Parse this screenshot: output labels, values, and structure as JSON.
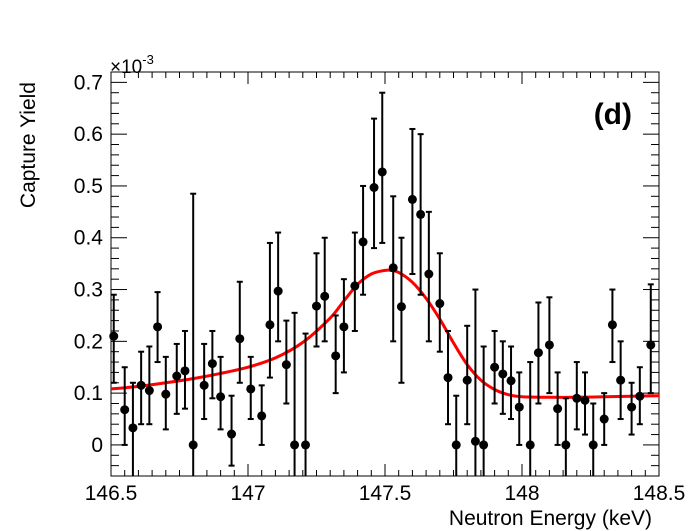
{
  "chart_data": {
    "type": "scatter",
    "title": "",
    "panel_label": "(d)",
    "xlabel": "Neutron Energy (keV)",
    "ylabel": "Capture Yield",
    "y_exponent": "×10",
    "y_exponent_power": "-3",
    "xlim": [
      146.5,
      148.5
    ],
    "ylim": [
      -0.06,
      0.72
    ],
    "x_ticks": [
      146.5,
      147,
      147.5,
      148,
      148.5
    ],
    "x_tick_labels": [
      "146.5",
      "147",
      "147.5",
      "148",
      "148.5"
    ],
    "y_ticks": [
      0,
      0.1,
      0.2,
      0.3,
      0.4,
      0.5,
      0.6,
      0.7
    ],
    "y_tick_labels": [
      "0",
      "0.1",
      "0.2",
      "0.3",
      "0.4",
      "0.5",
      "0.6",
      "0.7"
    ],
    "series": [
      {
        "name": "data",
        "color": "#000000",
        "points": [
          {
            "x": 146.51,
            "y": 0.21,
            "lo": 0.12,
            "hi": 0.29
          },
          {
            "x": 146.55,
            "y": 0.068,
            "lo": 0.0,
            "hi": 0.15
          },
          {
            "x": 146.58,
            "y": 0.033,
            "lo": -0.06,
            "hi": 0.12
          },
          {
            "x": 146.61,
            "y": 0.115,
            "lo": 0.04,
            "hi": 0.18
          },
          {
            "x": 146.64,
            "y": 0.105,
            "lo": 0.04,
            "hi": 0.19
          },
          {
            "x": 146.67,
            "y": 0.228,
            "lo": 0.16,
            "hi": 0.295
          },
          {
            "x": 146.7,
            "y": 0.098,
            "lo": 0.03,
            "hi": 0.17
          },
          {
            "x": 146.74,
            "y": 0.133,
            "lo": 0.06,
            "hi": 0.195
          },
          {
            "x": 146.77,
            "y": 0.143,
            "lo": 0.07,
            "hi": 0.22
          },
          {
            "x": 146.8,
            "y": 0.0,
            "lo": -0.06,
            "hi": 0.485
          },
          {
            "x": 146.84,
            "y": 0.115,
            "lo": 0.05,
            "hi": 0.195
          },
          {
            "x": 146.87,
            "y": 0.157,
            "lo": 0.09,
            "hi": 0.22
          },
          {
            "x": 146.9,
            "y": 0.093,
            "lo": 0.03,
            "hi": 0.17
          },
          {
            "x": 146.94,
            "y": 0.021,
            "lo": -0.04,
            "hi": 0.095
          },
          {
            "x": 146.97,
            "y": 0.205,
            "lo": 0.12,
            "hi": 0.315
          },
          {
            "x": 147.01,
            "y": 0.108,
            "lo": 0.05,
            "hi": 0.17
          },
          {
            "x": 147.05,
            "y": 0.056,
            "lo": 0.0,
            "hi": 0.115
          },
          {
            "x": 147.08,
            "y": 0.232,
            "lo": 0.13,
            "hi": 0.39
          },
          {
            "x": 147.11,
            "y": 0.297,
            "lo": 0.2,
            "hi": 0.41
          },
          {
            "x": 147.14,
            "y": 0.155,
            "lo": 0.08,
            "hi": 0.24
          },
          {
            "x": 147.17,
            "y": 0.0,
            "lo": -0.06,
            "hi": 0.255
          },
          {
            "x": 147.21,
            "y": 0.0,
            "lo": -0.06,
            "hi": 0.215
          },
          {
            "x": 147.25,
            "y": 0.268,
            "lo": 0.19,
            "hi": 0.37
          },
          {
            "x": 147.28,
            "y": 0.287,
            "lo": 0.2,
            "hi": 0.4
          },
          {
            "x": 147.32,
            "y": 0.172,
            "lo": 0.1,
            "hi": 0.25
          },
          {
            "x": 147.35,
            "y": 0.228,
            "lo": 0.14,
            "hi": 0.32
          },
          {
            "x": 147.39,
            "y": 0.307,
            "lo": 0.22,
            "hi": 0.41
          },
          {
            "x": 147.42,
            "y": 0.392,
            "lo": 0.29,
            "hi": 0.5
          },
          {
            "x": 147.46,
            "y": 0.497,
            "lo": 0.38,
            "hi": 0.63
          },
          {
            "x": 147.49,
            "y": 0.527,
            "lo": 0.39,
            "hi": 0.68
          },
          {
            "x": 147.53,
            "y": 0.342,
            "lo": 0.2,
            "hi": 0.48
          },
          {
            "x": 147.56,
            "y": 0.267,
            "lo": 0.12,
            "hi": 0.4
          },
          {
            "x": 147.6,
            "y": 0.474,
            "lo": 0.33,
            "hi": 0.61
          },
          {
            "x": 147.63,
            "y": 0.445,
            "lo": 0.29,
            "hi": 0.6
          },
          {
            "x": 147.66,
            "y": 0.33,
            "lo": 0.2,
            "hi": 0.45
          },
          {
            "x": 147.7,
            "y": 0.273,
            "lo": 0.18,
            "hi": 0.37
          },
          {
            "x": 147.73,
            "y": 0.13,
            "lo": 0.04,
            "hi": 0.22
          },
          {
            "x": 147.76,
            "y": 0.0,
            "lo": -0.06,
            "hi": 0.095
          },
          {
            "x": 147.8,
            "y": 0.125,
            "lo": 0.04,
            "hi": 0.23
          },
          {
            "x": 147.83,
            "y": 0.007,
            "lo": -0.06,
            "hi": 0.3
          },
          {
            "x": 147.86,
            "y": 0.0,
            "lo": -0.06,
            "hi": 0.19
          },
          {
            "x": 147.9,
            "y": 0.15,
            "lo": 0.08,
            "hi": 0.22
          },
          {
            "x": 147.93,
            "y": 0.137,
            "lo": 0.06,
            "hi": 0.2
          },
          {
            "x": 147.96,
            "y": 0.124,
            "lo": 0.05,
            "hi": 0.19
          },
          {
            "x": 147.99,
            "y": 0.073,
            "lo": 0.0,
            "hi": 0.14
          },
          {
            "x": 148.03,
            "y": 0.0,
            "lo": -0.06,
            "hi": 0.16
          },
          {
            "x": 148.06,
            "y": 0.178,
            "lo": 0.08,
            "hi": 0.275
          },
          {
            "x": 148.1,
            "y": 0.193,
            "lo": 0.1,
            "hi": 0.285
          },
          {
            "x": 148.13,
            "y": 0.07,
            "lo": 0.0,
            "hi": 0.14
          },
          {
            "x": 148.16,
            "y": 0.0,
            "lo": -0.06,
            "hi": 0.09
          },
          {
            "x": 148.2,
            "y": 0.09,
            "lo": 0.03,
            "hi": 0.16
          },
          {
            "x": 148.23,
            "y": 0.086,
            "lo": 0.02,
            "hi": 0.14
          },
          {
            "x": 148.26,
            "y": 0.0,
            "lo": -0.06,
            "hi": 0.08
          },
          {
            "x": 148.3,
            "y": 0.05,
            "lo": 0.0,
            "hi": 0.1
          },
          {
            "x": 148.33,
            "y": 0.232,
            "lo": 0.16,
            "hi": 0.3
          },
          {
            "x": 148.36,
            "y": 0.125,
            "lo": 0.05,
            "hi": 0.2
          },
          {
            "x": 148.4,
            "y": 0.073,
            "lo": 0.02,
            "hi": 0.12
          },
          {
            "x": 148.43,
            "y": 0.094,
            "lo": 0.04,
            "hi": 0.15
          },
          {
            "x": 148.47,
            "y": 0.193,
            "lo": 0.1,
            "hi": 0.31
          }
        ]
      },
      {
        "name": "fit",
        "type": "line",
        "color": "#ff0000",
        "x": [
          146.5,
          146.6,
          146.7,
          146.8,
          146.9,
          147.0,
          147.1,
          147.2,
          147.3,
          147.35,
          147.4,
          147.45,
          147.5,
          147.52,
          147.55,
          147.6,
          147.65,
          147.7,
          147.75,
          147.8,
          147.85,
          147.9,
          147.95,
          148.0,
          148.1,
          148.2,
          148.3,
          148.4,
          148.5
        ],
        "y": [
          0.108,
          0.113,
          0.12,
          0.128,
          0.138,
          0.15,
          0.168,
          0.198,
          0.245,
          0.278,
          0.31,
          0.33,
          0.337,
          0.337,
          0.333,
          0.314,
          0.283,
          0.243,
          0.197,
          0.155,
          0.125,
          0.107,
          0.097,
          0.093,
          0.092,
          0.092,
          0.093,
          0.094,
          0.095
        ]
      }
    ]
  }
}
